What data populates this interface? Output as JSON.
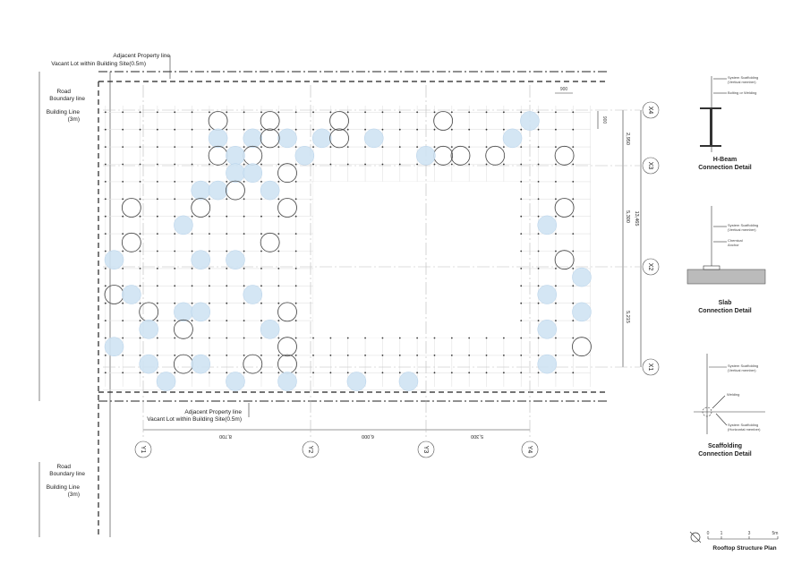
{
  "plan": {
    "top_property": [
      "Adjacent Property line",
      "Vacant Lot within Building Site(0.5m)"
    ],
    "bottom_property": [
      "Adjacent Property line",
      "Vacant Lot within Building Site(0.5m)"
    ],
    "road_labels": [
      {
        "road": [
          "Road",
          "Boundary line"
        ],
        "building": [
          "Building Line",
          "(3m)"
        ]
      },
      {
        "road": [
          "Road",
          "Boundary line"
        ],
        "building": [
          "Building Line",
          "(3m)"
        ]
      }
    ],
    "dimensions": {
      "top": "900",
      "side": "900",
      "right": [
        "2,950",
        "5,300",
        "13,465",
        "5,215"
      ],
      "bottom": [
        "8,700",
        "6,000",
        "5,300"
      ]
    },
    "grid_x": [
      "X4",
      "X3",
      "X2",
      "X1"
    ],
    "grid_y": [
      "Y1",
      "Y2",
      "Y3",
      "Y4"
    ]
  },
  "details": [
    {
      "callouts": [
        [
          "System Scaffolding",
          "(Vertical member)"
        ],
        [
          "Bolting or Welding"
        ]
      ],
      "title": [
        "H-Beam",
        "Connection Detail"
      ]
    },
    {
      "callouts": [
        [
          "System Scaffolding",
          "(Vertical member)"
        ],
        [
          "Chemical",
          "Anchor"
        ]
      ],
      "title": [
        "Slab",
        "Connection Detail"
      ]
    },
    {
      "callouts": [
        [
          "System Scaffolding",
          "(Vertical member)"
        ],
        [
          "Welding"
        ],
        [
          "System Scaffolding",
          "(Horizontal member)"
        ]
      ],
      "title": [
        "Scaffolding",
        "Connection Detail"
      ]
    }
  ],
  "scale": {
    "ticks": [
      "0",
      "1",
      "3",
      "5m"
    ],
    "title": "Rooftop Structure Plan"
  }
}
